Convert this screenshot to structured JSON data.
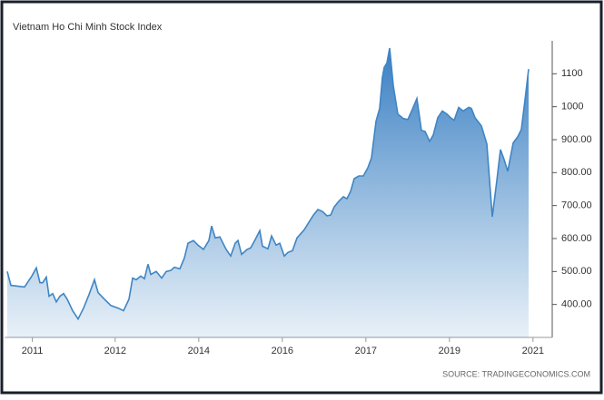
{
  "chart_data": {
    "type": "area",
    "title": "Vietnam Ho Chi Minh Stock Index",
    "source": "SOURCE: TRADINGECONOMICS.COM",
    "color": "#3f85c4",
    "x": [
      0,
      0.52,
      2.48,
      3.52,
      4.17,
      4.7,
      5.09,
      5.61,
      6,
      6.52,
      7.04,
      7.57,
      8.09,
      8.61,
      9.39,
      10.17,
      10.96,
      11.74,
      12.52,
      13.04,
      13.96,
      14.87,
      15.91,
      16.7,
      17.48,
      18,
      18.52,
      19.17,
      19.7,
      20.22,
      20.61,
      21.39,
      22.17,
      22.83,
      23.48,
      24,
      24.78,
      25.43,
      25.96,
      26.74,
      27.39,
      28.17,
      28.96,
      29.35,
      29.87,
      30.52,
      31.43,
      32.09,
      32.74,
      33.13,
      33.65,
      34.43,
      34.96,
      35.61,
      36.26,
      36.65,
      37.43,
      37.96,
      38.61,
      39.13,
      39.78,
      40.3,
      40.96,
      41.61,
      42.65,
      43.3,
      43.96,
      44.61,
      45.26,
      45.91,
      46.43,
      46.96,
      47.61,
      48.26,
      48.78,
      49.3,
      49.83,
      50.48,
      51.13,
      51.78,
      52.3,
      52.96,
      53.48,
      53.87,
      54.13,
      54.52,
      54.91,
      55.43,
      56.09,
      56.87,
      57.52,
      58.17,
      58.83,
      59.48,
      60,
      60.65,
      61.17,
      61.83,
      62.48,
      63.13,
      63.65,
      64.17,
      64.83,
      65.48,
      66.26,
      66.65,
      67.17,
      68.09,
      68.87,
      69.65,
      70.3,
      70.83,
      71.35,
      71.87,
      72.65,
      73.3,
      73.83,
      74.35,
      74.87
    ],
    "values": [
      500,
      458,
      453,
      486,
      511,
      466,
      466,
      483,
      425,
      433,
      408,
      425,
      433,
      416,
      381,
      356,
      389,
      430,
      475,
      436,
      416,
      397,
      389,
      381,
      416,
      480,
      475,
      486,
      478,
      522,
      491,
      500,
      480,
      500,
      503,
      513,
      508,
      541,
      586,
      594,
      580,
      567,
      594,
      638,
      602,
      605,
      567,
      547,
      586,
      594,
      552,
      567,
      572,
      597,
      624,
      577,
      569,
      608,
      580,
      586,
      547,
      558,
      563,
      602,
      627,
      649,
      671,
      688,
      682,
      669,
      671,
      696,
      713,
      727,
      721,
      743,
      782,
      790,
      790,
      815,
      845,
      956,
      995,
      1089,
      1119,
      1133,
      1178,
      1064,
      978,
      964,
      961,
      992,
      1025,
      928,
      925,
      895,
      914,
      967,
      987,
      978,
      967,
      959,
      998,
      987,
      998,
      995,
      967,
      942,
      887,
      666,
      776,
      870,
      840,
      804,
      890,
      909,
      931,
      1020,
      1114
    ],
    "xlim": [
      0,
      78
    ],
    "xticks": [
      {
        "value": 3.6,
        "label": "2011"
      },
      {
        "value": 15.5,
        "label": "2012"
      },
      {
        "value": 27.5,
        "label": "2014"
      },
      {
        "value": 39.5,
        "label": "2016"
      },
      {
        "value": 51.5,
        "label": "2017"
      },
      {
        "value": 63.5,
        "label": "2019"
      },
      {
        "value": 75.5,
        "label": "2021"
      }
    ],
    "ylim": [
      300,
      1200
    ],
    "yticks": [
      {
        "value": 400,
        "label": "400.00"
      },
      {
        "value": 500,
        "label": "500.00"
      },
      {
        "value": 600,
        "label": "600.00"
      },
      {
        "value": 700,
        "label": "700.00"
      },
      {
        "value": 800,
        "label": "800.00"
      },
      {
        "value": 900,
        "label": "900.00"
      },
      1000,
      1100
    ],
    "grid": false
  }
}
